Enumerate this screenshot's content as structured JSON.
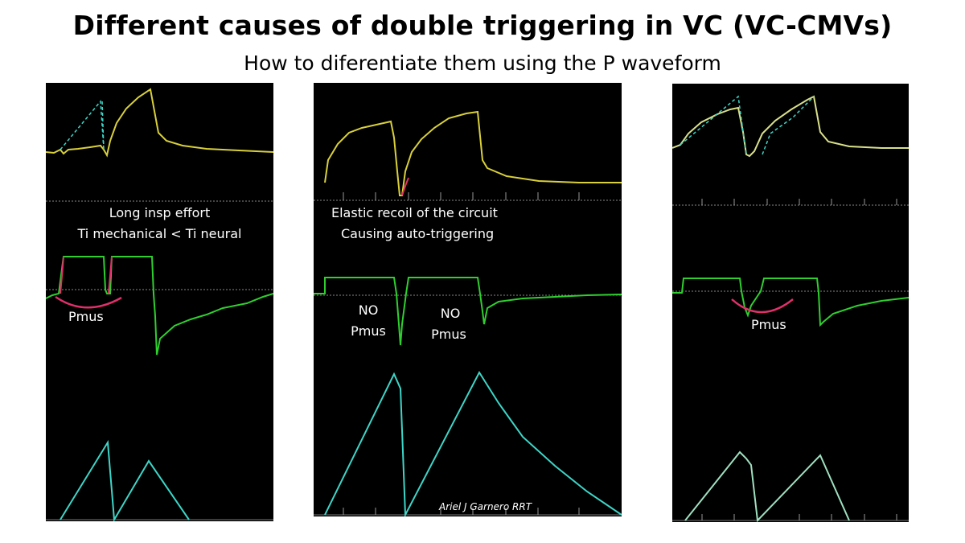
{
  "title": "Different causes of double triggering in VC (VC-CMVs)",
  "subtitle": "How to diferentiate them using the P waveform",
  "colors": {
    "background": "#000000",
    "pressure": "#d9d03a",
    "flow": "#2fcf2f",
    "volume": "#3dd6c8",
    "annotation": "#e0306b",
    "label": "#ffffff"
  },
  "panels": [
    {
      "id": "left",
      "labels": {
        "line1": "Long insp effort",
        "line2": "Ti mechanical < Ti neural",
        "pmus": "Pmus"
      }
    },
    {
      "id": "middle",
      "labels": {
        "line1": "Elastic recoil of the circuit",
        "line2": "Causing auto-triggering",
        "nopmus1_a": "NO",
        "nopmus1_b": "Pmus",
        "nopmus2_a": "NO",
        "nopmus2_b": "Pmus",
        "credit": "Ariel J Garnero RRT"
      }
    },
    {
      "id": "right",
      "labels": {
        "pmus": "Pmus"
      }
    }
  ]
}
